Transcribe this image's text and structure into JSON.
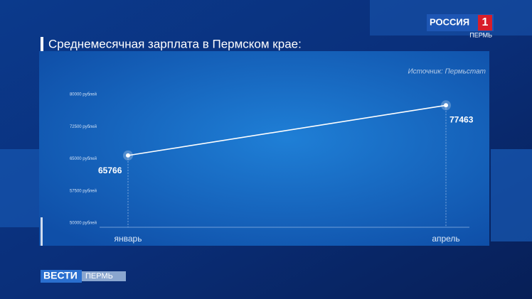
{
  "chart_data": {
    "type": "line",
    "title": "Среднемесячная зарплата в Пермском крае:",
    "source": "Источник: Пермьстат",
    "categories": [
      "январь",
      "апрель"
    ],
    "values": [
      65766,
      77463
    ],
    "color": "#ffffff",
    "ylim": [
      50000,
      80000
    ],
    "yticks": [
      {
        "value": 50000,
        "label": "50000 рублей"
      },
      {
        "value": 57500,
        "label": "57500 рублей"
      },
      {
        "value": 65000,
        "label": "65000 рублей"
      },
      {
        "value": 72500,
        "label": "72500 рублей"
      },
      {
        "value": 80000,
        "label": "80000 рублей"
      }
    ]
  },
  "channel_logo": {
    "name": "РОССИЯ",
    "number": "1",
    "region": "ПЕРМЬ"
  },
  "program_logo": {
    "name": "ВЕСТИ",
    "region": "ПЕРМЬ"
  }
}
